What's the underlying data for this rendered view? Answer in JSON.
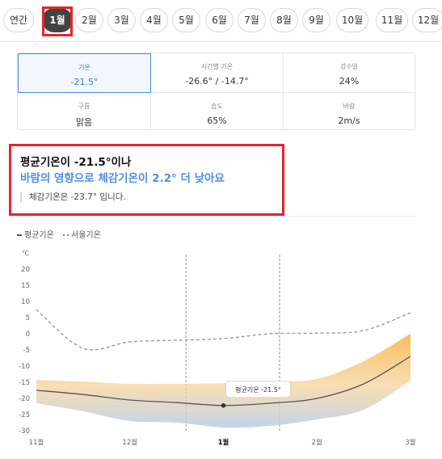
{
  "tabs": [
    "연간",
    "1월",
    "2월",
    "3월",
    "4월",
    "5월",
    "6월",
    "7월",
    "8월",
    "9월",
    "10월",
    "11월",
    "12월"
  ],
  "active_tab": "1월",
  "stats": [
    {
      "label": "기온",
      "value": "-21.5°"
    },
    {
      "label": "시간별 기온",
      "value": "-26.6° / -14.7°"
    },
    {
      "label": "강수일",
      "value": "24%"
    },
    {
      "label": "구름",
      "value": "맑음"
    },
    {
      "label": "습도",
      "value": "65%"
    },
    {
      "label": "바람",
      "value": "2m/s"
    }
  ],
  "message": {
    "line1": "평균기온이 -21.5°이나",
    "line2": "바람의 영향으로 체감기온이 2.2° 더 낮아요",
    "line3": "체감기온은 -23.7° 입니다."
  },
  "legend": {
    "avg": "평균기온",
    "feel": "서울기온"
  },
  "colors": {
    "accent": "#4a8be8",
    "highlight": "#e8232b",
    "active_tab": "#424242"
  },
  "chart_data": {
    "type": "area",
    "x_ticks": [
      "11월",
      "12월",
      "1월",
      "2월",
      "3월"
    ],
    "y_unit": "℃",
    "y_ticks": [
      20,
      15,
      10,
      5,
      0,
      -5,
      -10,
      -15,
      -20,
      -25,
      -30
    ],
    "ylim": [
      -30,
      22
    ],
    "x": [
      0,
      0.5,
      1,
      1.5,
      2,
      2.5,
      3,
      3.5,
      4
    ],
    "series": [
      {
        "name": "평균기온",
        "values": [
          -17.5,
          -18.8,
          -20.5,
          -21.3,
          -22.2,
          -21.5,
          -20,
          -15.5,
          -7
        ]
      },
      {
        "name": "서울기온",
        "values": [
          7.5,
          -4.5,
          -2.5,
          -2,
          -1.5,
          0,
          0.2,
          1,
          6.5
        ]
      }
    ],
    "band_upper": [
      -14.3,
      -14.8,
      -15.5,
      -15.5,
      -15.3,
      -14.8,
      -14,
      -8.5,
      0
    ],
    "band_lower": [
      -21.5,
      -24,
      -27,
      -27.5,
      -29,
      -28.5,
      -26.5,
      -23.5,
      -14.5
    ],
    "highlight_x": 2.0,
    "highlight_range": [
      1.6,
      2.6
    ],
    "tooltip": {
      "label": "평균기온 -21.5°"
    }
  }
}
